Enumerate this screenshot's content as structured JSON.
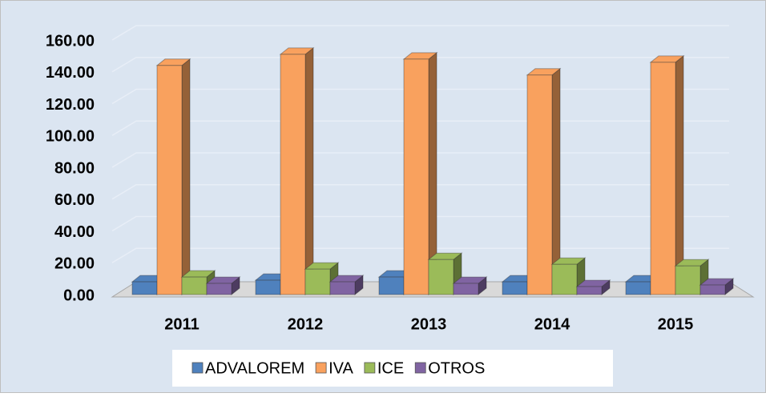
{
  "chart_data": {
    "type": "bar3d",
    "categories": [
      "2011",
      "2012",
      "2013",
      "2014",
      "2015"
    ],
    "series": [
      {
        "name": "ADVALOREM",
        "color": "#4f81bd",
        "values": [
          8,
          9,
          11,
          8,
          8
        ]
      },
      {
        "name": "IVA",
        "color": "#f9a15e",
        "values": [
          144,
          151,
          148,
          138,
          146
        ]
      },
      {
        "name": "ICE",
        "color": "#9bbb59",
        "values": [
          11,
          16,
          22,
          19,
          18
        ]
      },
      {
        "name": "OTROS",
        "color": "#8064a2",
        "values": [
          7,
          8,
          7,
          5,
          6
        ]
      }
    ],
    "ylim": [
      0,
      160
    ],
    "yticks": [
      {
        "value": 0,
        "label": "0.00"
      },
      {
        "value": 20,
        "label": "20.00"
      },
      {
        "value": 40,
        "label": "40.00"
      },
      {
        "value": 60,
        "label": "60.00"
      },
      {
        "value": 80,
        "label": "80.00"
      },
      {
        "value": 100,
        "label": "100.00"
      },
      {
        "value": 120,
        "label": "120.00"
      },
      {
        "value": 140,
        "label": "140.00"
      },
      {
        "value": 160,
        "label": "160.00"
      }
    ],
    "grid": true,
    "legend": "bottom"
  }
}
